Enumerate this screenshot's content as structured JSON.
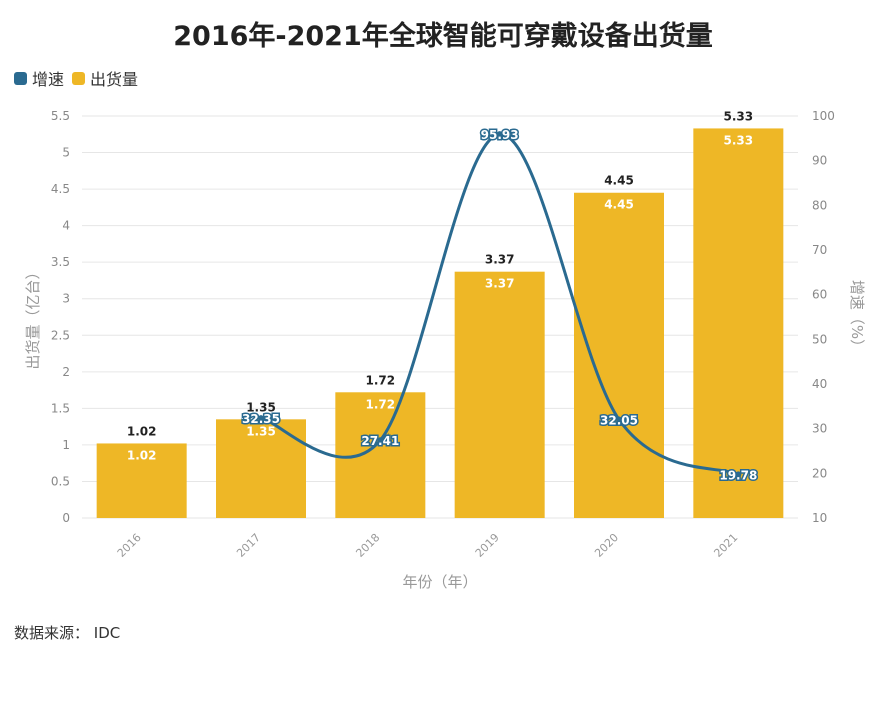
{
  "chart_data": {
    "type": "bar+line",
    "title": "2016年-2021年全球智能可穿戴设备出货量",
    "categories": [
      "2016",
      "2017",
      "2018",
      "2019",
      "2020",
      "2021"
    ],
    "series": [
      {
        "name": "出货量",
        "type": "bar",
        "axis": "left",
        "values": [
          1.02,
          1.35,
          1.72,
          3.37,
          4.45,
          5.33
        ],
        "color": "#EEB726"
      },
      {
        "name": "增速",
        "type": "line",
        "axis": "right",
        "values": [
          null,
          32.35,
          27.41,
          95.93,
          32.05,
          19.78
        ],
        "color": "#2A6A90"
      }
    ],
    "xlabel": "年份（年）",
    "ylabel": "出货量（亿台）",
    "y2label": "增速（%）",
    "ylim": [
      0,
      5.5
    ],
    "yticks": [
      "0",
      "0.5",
      "1",
      "1.5",
      "2",
      "2.5",
      "3",
      "3.5",
      "4",
      "4.5",
      "5",
      "5.5"
    ],
    "y2lim": [
      10,
      100
    ],
    "y2ticks": [
      "10",
      "20",
      "30",
      "40",
      "50",
      "60",
      "70",
      "80",
      "90",
      "100"
    ],
    "grid": true,
    "legend_position": "top-left"
  },
  "legend": [
    {
      "label": "增速",
      "color": "#2A6A90"
    },
    {
      "label": "出货量",
      "color": "#EEB726"
    }
  ],
  "source": "数据来源：  IDC"
}
